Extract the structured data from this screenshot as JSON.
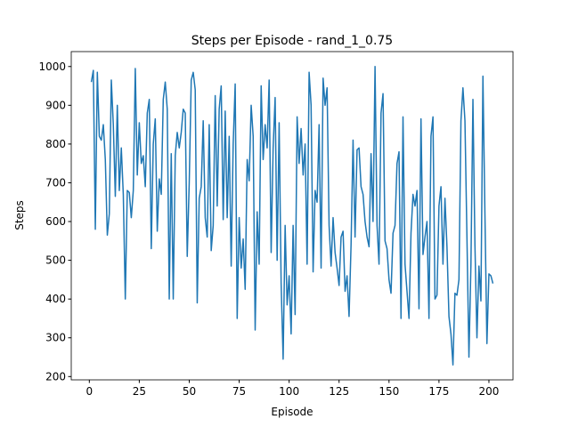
{
  "chart_data": {
    "type": "line",
    "title": "Steps per Episode - rand_1_0.75",
    "x_label": "Episode",
    "y_label": "Steps",
    "x": [
      1,
      2,
      3,
      4,
      5,
      6,
      7,
      8,
      9,
      10,
      11,
      12,
      13,
      14,
      15,
      16,
      17,
      18,
      19,
      20,
      21,
      22,
      23,
      24,
      25,
      26,
      27,
      28,
      29,
      30,
      31,
      32,
      33,
      34,
      35,
      36,
      37,
      38,
      39,
      40,
      41,
      42,
      43,
      44,
      45,
      46,
      47,
      48,
      49,
      50,
      51,
      52,
      53,
      54,
      55,
      56,
      57,
      58,
      59,
      60,
      61,
      62,
      63,
      64,
      65,
      66,
      67,
      68,
      69,
      70,
      71,
      72,
      73,
      74,
      75,
      76,
      77,
      78,
      79,
      80,
      81,
      82,
      83,
      84,
      85,
      86,
      87,
      88,
      89,
      90,
      91,
      92,
      93,
      94,
      95,
      96,
      97,
      98,
      99,
      100,
      101,
      102,
      103,
      104,
      105,
      106,
      107,
      108,
      109,
      110,
      111,
      112,
      113,
      114,
      115,
      116,
      117,
      118,
      119,
      120,
      121,
      122,
      123,
      124,
      125,
      126,
      127,
      128,
      129,
      130,
      131,
      132,
      133,
      134,
      135,
      136,
      137,
      138,
      139,
      140,
      141,
      142,
      143,
      144,
      145,
      146,
      147,
      148,
      149,
      150,
      151,
      152,
      153,
      154,
      155,
      156,
      157,
      158,
      159,
      160,
      161,
      162,
      163,
      164,
      165,
      166,
      167,
      168,
      169,
      170,
      171,
      172,
      173,
      174,
      175,
      176,
      177,
      178,
      179,
      180,
      181,
      182,
      183,
      184,
      185,
      186,
      187,
      188,
      189,
      190,
      191,
      192,
      193,
      194,
      195,
      196,
      197,
      198,
      199,
      200,
      201,
      202
    ],
    "series": [
      {
        "name": "Steps",
        "color": "#1f77b4",
        "values": [
          960,
          990,
          580,
          985,
          820,
          810,
          850,
          760,
          565,
          620,
          965,
          850,
          665,
          900,
          680,
          790,
          670,
          400,
          680,
          675,
          610,
          680,
          995,
          720,
          855,
          750,
          770,
          690,
          880,
          915,
          530,
          800,
          865,
          575,
          710,
          670,
          915,
          960,
          890,
          400,
          775,
          400,
          770,
          830,
          790,
          830,
          890,
          880,
          510,
          700,
          965,
          985,
          940,
          390,
          660,
          690,
          860,
          610,
          560,
          850,
          525,
          590,
          925,
          640,
          890,
          950,
          605,
          885,
          610,
          820,
          485,
          800,
          955,
          350,
          610,
          480,
          555,
          425,
          760,
          705,
          900,
          820,
          320,
          625,
          490,
          950,
          760,
          850,
          790,
          965,
          520,
          790,
          920,
          500,
          855,
          440,
          245,
          590,
          385,
          460,
          310,
          590,
          360,
          870,
          750,
          840,
          720,
          800,
          490,
          985,
          900,
          470,
          680,
          650,
          850,
          480,
          970,
          900,
          945,
          590,
          485,
          610,
          520,
          480,
          435,
          560,
          575,
          420,
          460,
          355,
          540,
          810,
          560,
          785,
          790,
          690,
          670,
          600,
          560,
          535,
          775,
          600,
          1000,
          590,
          490,
          880,
          930,
          550,
          530,
          450,
          415,
          570,
          590,
          750,
          780,
          350,
          870,
          490,
          420,
          350,
          570,
          670,
          640,
          680,
          375,
          865,
          515,
          560,
          600,
          350,
          820,
          870,
          400,
          410,
          640,
          690,
          490,
          660,
          535,
          355,
          310,
          230,
          415,
          410,
          450,
          860,
          945,
          860,
          560,
          250,
          490,
          915,
          540,
          300,
          485,
          395,
          975,
          620,
          285,
          465,
          460,
          440
        ]
      }
    ],
    "xlim": [
      -9.05,
      212.05
    ],
    "xticks": [
      0,
      25,
      50,
      75,
      100,
      125,
      150,
      175,
      200
    ],
    "ylim": [
      191.5,
      1038.5
    ],
    "yticks": [
      200,
      300,
      400,
      500,
      600,
      700,
      800,
      900,
      1000
    ],
    "grid": false
  }
}
